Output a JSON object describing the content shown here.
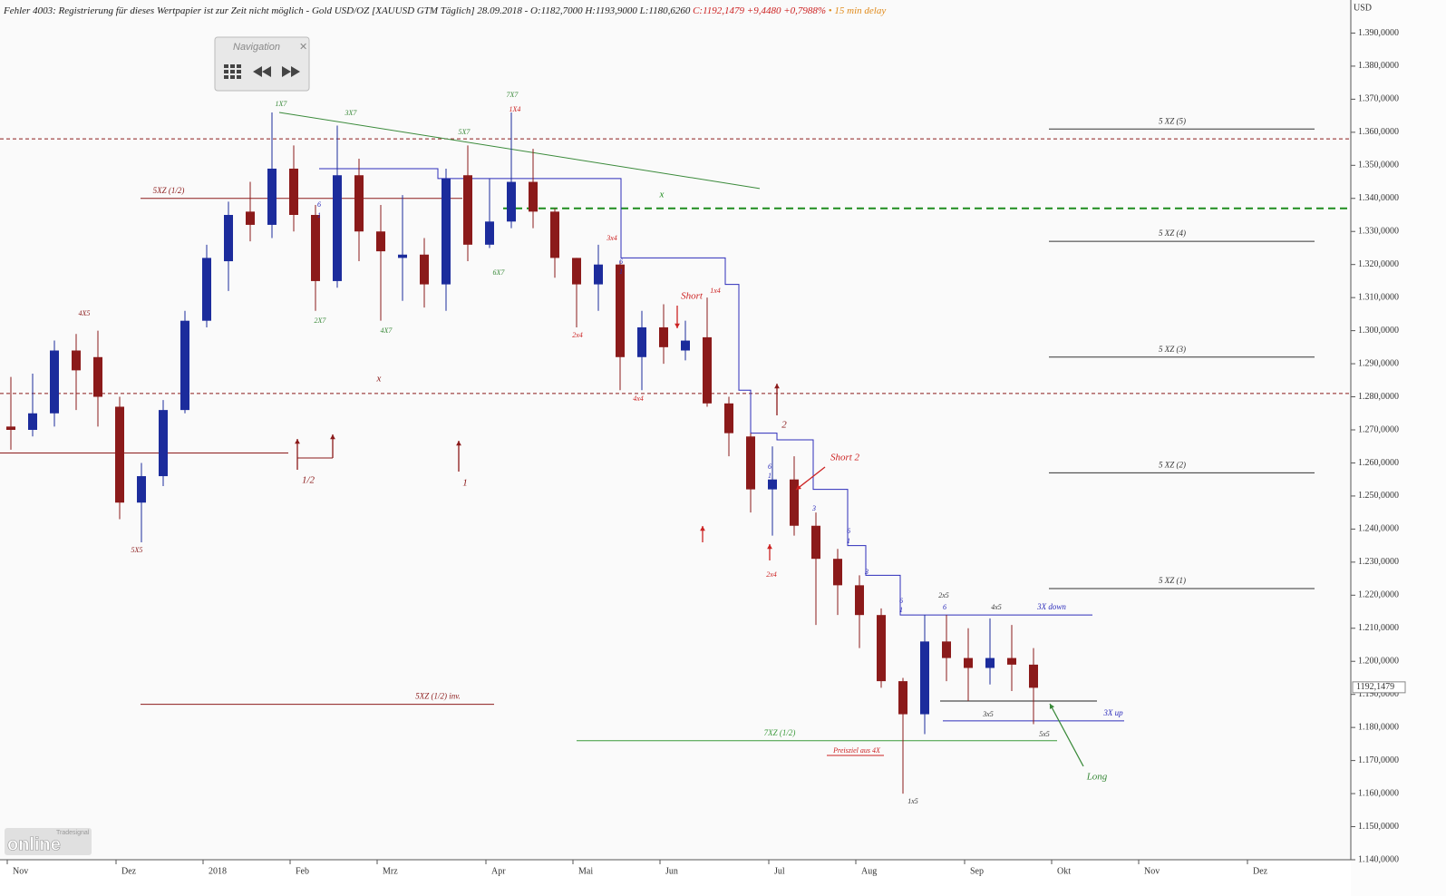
{
  "chart_data": {
    "type": "candlestick",
    "title": "Fehler 4003: Registrierung für dieses Wertpapier ist zur Zeit nicht möglich - Gold USD/OZ [XAUUSD GTM Täglich] 28.09.2018 - O:1182,7000 H:1193,9000 L:1180,6260",
    "title_change": "C:1192,1479 +9,4480 +0,7988%",
    "title_delay": "• 15 min delay",
    "y_axis_label": "USD",
    "navigation_label": "Navigation",
    "logo_small": "Tradesignal",
    "logo": "online",
    "up_color": "#1c2c9c",
    "down_color": "#8b1a1a",
    "ylim": [
      1140,
      1400
    ],
    "yticks": [
      {
        "value": 1140,
        "label": "1.140,0000"
      },
      {
        "value": 1150,
        "label": "1.150,0000"
      },
      {
        "value": 1160,
        "label": "1.160,0000"
      },
      {
        "value": 1170,
        "label": "1.170,0000"
      },
      {
        "value": 1180,
        "label": "1.180,0000"
      },
      {
        "value": 1190,
        "label": "1.190,0000"
      },
      {
        "value": 1200,
        "label": "1.200,0000"
      },
      {
        "value": 1210,
        "label": "1.210,0000"
      },
      {
        "value": 1220,
        "label": "1.220,0000"
      },
      {
        "value": 1230,
        "label": "1.230,0000"
      },
      {
        "value": 1240,
        "label": "1.240,0000"
      },
      {
        "value": 1250,
        "label": "1.250,0000"
      },
      {
        "value": 1260,
        "label": "1.260,0000"
      },
      {
        "value": 1270,
        "label": "1.270,0000"
      },
      {
        "value": 1280,
        "label": "1.280,0000"
      },
      {
        "value": 1290,
        "label": "1.290,0000"
      },
      {
        "value": 1300,
        "label": "1.300,0000"
      },
      {
        "value": 1310,
        "label": "1.310,0000"
      },
      {
        "value": 1320,
        "label": "1.320,0000"
      },
      {
        "value": 1330,
        "label": "1.330,0000"
      },
      {
        "value": 1340,
        "label": "1.340,0000"
      },
      {
        "value": 1350,
        "label": "1.350,0000"
      },
      {
        "value": 1360,
        "label": "1.360,0000"
      },
      {
        "value": 1370,
        "label": "1.370,0000"
      },
      {
        "value": 1380,
        "label": "1.380,0000"
      },
      {
        "value": 1390,
        "label": "1.390,0000"
      }
    ],
    "last": {
      "value": 1192.1479,
      "label": "1192,1479"
    },
    "categories": [
      "Nov",
      null,
      null,
      null,
      null,
      "Dez",
      null,
      null,
      null,
      "2018",
      null,
      null,
      null,
      "Feb",
      null,
      null,
      null,
      "Mrz",
      null,
      null,
      null,
      null,
      "Apr",
      null,
      null,
      null,
      "Mai",
      null,
      null,
      null,
      "Jun",
      null,
      null,
      null,
      null,
      "Jul",
      null,
      null,
      null,
      "Aug",
      null,
      null,
      null,
      null,
      "Sep",
      null,
      null,
      null,
      "Okt",
      null,
      null,
      null,
      "Nov",
      null,
      null,
      null,
      null,
      "Dez",
      null,
      null,
      null,
      null
    ],
    "open": [
      1271,
      1270,
      1275,
      1294,
      1292,
      1277,
      1248,
      1256,
      1276,
      1303,
      1321,
      1336,
      1332,
      1349,
      1335,
      1315,
      1347,
      1330,
      1322,
      1323,
      1314,
      1347,
      1326,
      1333,
      1345,
      1336,
      1322,
      1314,
      1320,
      1292,
      1301,
      1294,
      1298,
      1278,
      1268,
      1252,
      1255,
      1241,
      1231,
      1223,
      1214,
      1194,
      1184,
      1206,
      1201,
      1198,
      1201,
      1199,
      null,
      null,
      null,
      null,
      null,
      null,
      null,
      null,
      null,
      null,
      null,
      null,
      null,
      null
    ],
    "high": [
      1286,
      1287,
      1297,
      1299,
      1300,
      1280,
      1260,
      1279,
      1306,
      1326,
      1339,
      1345,
      1366,
      1356,
      1338,
      1362,
      1352,
      1338,
      1341,
      1328,
      1349,
      1356,
      1346,
      1366,
      1355,
      1337,
      1322,
      1326,
      1321,
      1306,
      1308,
      1303,
      1310,
      1280,
      1269,
      1265,
      1262,
      1245,
      1234,
      1226,
      1216,
      1195,
      1214,
      1214,
      1210,
      1213,
      1211,
      1204,
      null,
      null,
      null,
      null,
      null,
      null,
      null,
      null,
      null,
      null,
      null,
      null,
      null,
      null
    ],
    "low": [
      1264,
      1268,
      1271,
      1276,
      1271,
      1243,
      1236,
      1253,
      1275,
      1301,
      1312,
      1327,
      1328,
      1330,
      1306,
      1313,
      1321,
      1303,
      1309,
      1307,
      1306,
      1321,
      1325,
      1331,
      1331,
      1316,
      1301,
      1306,
      1282,
      1282,
      1290,
      1291,
      1277,
      1262,
      1245,
      1238,
      1238,
      1211,
      1214,
      1204,
      1192,
      1160,
      1178,
      1194,
      1188,
      1193,
      1191,
      1181,
      null,
      null,
      null,
      null,
      null,
      null,
      null,
      null,
      null,
      null,
      null,
      null,
      null,
      null
    ],
    "close": [
      1270,
      1275,
      1294,
      1288,
      1280,
      1248,
      1256,
      1276,
      1303,
      1322,
      1335,
      1332,
      1349,
      1335,
      1315,
      1347,
      1330,
      1324,
      1323,
      1314,
      1346,
      1326,
      1333,
      1345,
      1336,
      1322,
      1314,
      1320,
      1292,
      1301,
      1295,
      1297,
      1278,
      1269,
      1252,
      1255,
      1241,
      1231,
      1223,
      1214,
      1194,
      1184,
      1206,
      1201,
      1198,
      1201,
      1199,
      1192,
      null,
      null,
      null,
      null,
      null,
      null,
      null,
      null,
      null,
      null,
      null,
      null,
      null,
      null
    ],
    "trend": {
      "color": "#3a8a3a",
      "values": [
        1366,
        1343
      ]
    },
    "trail": {
      "color": "#2d2dbb",
      "values": [
        1349,
        1346,
        1322,
        1314,
        1282,
        1269,
        1267,
        1252,
        1235,
        1226,
        1214
      ]
    },
    "levels": [
      {
        "label": "5 XZ (5)",
        "value": 1361,
        "color": "#333333"
      },
      {
        "label": "5 XZ (4)",
        "value": 1327,
        "color": "#333333"
      },
      {
        "label": "5 XZ (3)",
        "value": 1292,
        "color": "#333333"
      },
      {
        "label": "5 XZ (2)",
        "value": 1257,
        "color": "#333333"
      },
      {
        "label": "5 XZ (1)",
        "value": 1222,
        "color": "#333333"
      },
      {
        "label": "5XZ (1/2)",
        "value": 1340,
        "color": "#8b1a1a"
      },
      {
        "value": 1358,
        "color": "#8b1a1a",
        "dashed": true
      },
      {
        "value": 1281,
        "color": "#8b1a1a",
        "dashed": true
      },
      {
        "value": 1337,
        "color": "#1e8c1e",
        "dashed": true
      },
      {
        "value": 1263,
        "color": "#8b1a1a"
      },
      {
        "label": "5XZ (1/2) inv.",
        "value": 1187,
        "color": "#8b1a1a"
      },
      {
        "label": "7XZ (1/2)",
        "value": 1176,
        "color": "#3a9a3a"
      },
      {
        "label": "3X down",
        "value": 1214,
        "color": "#2d2dbb"
      },
      {
        "label": "3X up",
        "value": 1182,
        "color": "#2d2dbb"
      },
      {
        "value": 1188,
        "color": "#222222"
      }
    ],
    "annotations": [
      {
        "text": "1X7",
        "color": "#3a8a3a"
      },
      {
        "text": "3X7",
        "color": "#3a8a3a"
      },
      {
        "text": "5X7",
        "color": "#3a8a3a"
      },
      {
        "text": "7X7",
        "color": "#3a8a3a"
      },
      {
        "text": "2X7",
        "color": "#3a8a3a"
      },
      {
        "text": "4X7",
        "color": "#3a8a3a"
      },
      {
        "text": "6X7",
        "color": "#3a8a3a"
      },
      {
        "text": "4X5",
        "color": "#8b1a1a"
      },
      {
        "text": "5X5",
        "color": "#8b1a1a"
      },
      {
        "text": "x",
        "color": "#8b1a1a"
      },
      {
        "text": "x",
        "color": "#1e8c1e"
      },
      {
        "text": "1/2",
        "color": "#8b1a1a"
      },
      {
        "text": "1",
        "color": "#8b1a1a"
      },
      {
        "text": "2",
        "color": "#8b1a1a"
      },
      {
        "text": "3x4",
        "color": "#cc2222"
      },
      {
        "text": "2x4",
        "color": "#cc2222"
      },
      {
        "text": "4x4",
        "color": "#cc2222"
      },
      {
        "text": "1x4",
        "color": "#cc2222"
      },
      {
        "text": "2x4",
        "color": "#cc2222"
      },
      {
        "text": "Short",
        "color": "#cc2222"
      },
      {
        "text": "Short 2",
        "color": "#cc2222"
      },
      {
        "text": "Long",
        "color": "#3a8a3a"
      },
      {
        "text": "2x5",
        "color": "#333333"
      },
      {
        "text": "4x5",
        "color": "#333333"
      },
      {
        "text": "3x5",
        "color": "#333333"
      },
      {
        "text": "5x5",
        "color": "#333333"
      },
      {
        "text": "1x5",
        "color": "#333333"
      },
      {
        "text": "Preisziel aus 4X",
        "color": "#cc2222"
      },
      {
        "text": "1X4",
        "color": "#cc2222"
      },
      {
        "text": "6",
        "color": "#2d2dbb"
      },
      {
        "text": "1",
        "color": "#2d2dbb"
      },
      {
        "text": "6",
        "color": "#2d2dbb"
      },
      {
        "text": "1",
        "color": "#2d2dbb"
      },
      {
        "text": "6",
        "color": "#2d2dbb"
      },
      {
        "text": "1",
        "color": "#2d2dbb"
      },
      {
        "text": "3",
        "color": "#2d2dbb"
      },
      {
        "text": "6",
        "color": "#2d2dbb"
      },
      {
        "text": "1",
        "color": "#2d2dbb"
      },
      {
        "text": "3",
        "color": "#2d2dbb"
      },
      {
        "text": "6",
        "color": "#2d2dbb"
      },
      {
        "text": "1",
        "color": "#2d2dbb"
      },
      {
        "text": "6",
        "color": "#2d2dbb"
      }
    ]
  }
}
